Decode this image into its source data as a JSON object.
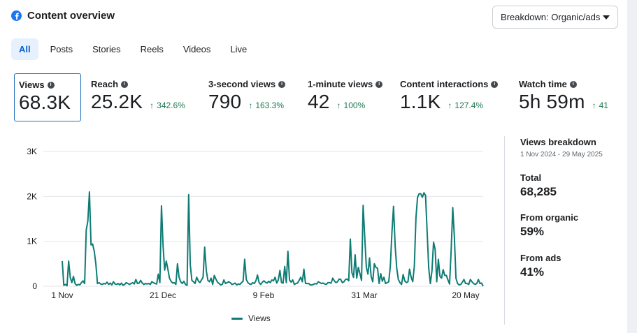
{
  "header": {
    "title": "Content overview",
    "icon": "facebook-icon"
  },
  "breakdown": {
    "label": "Breakdown: Organic/ads"
  },
  "tabs": [
    {
      "label": "All",
      "active": true
    },
    {
      "label": "Posts"
    },
    {
      "label": "Stories"
    },
    {
      "label": "Reels"
    },
    {
      "label": "Videos"
    },
    {
      "label": "Live"
    }
  ],
  "metrics": [
    {
      "label": "Views",
      "value": "68.3K",
      "change": "",
      "selected": true
    },
    {
      "label": "Reach",
      "value": "25.2K",
      "change": "342.6%"
    },
    {
      "label": "3-second views",
      "value": "790",
      "change": "163.3%"
    },
    {
      "label": "1-minute views",
      "value": "42",
      "change": "100%"
    },
    {
      "label": "Content interactions",
      "value": "1.1K",
      "change": "127.4%"
    },
    {
      "label": "Watch time",
      "value": "5h 59m",
      "change": "41"
    }
  ],
  "side": {
    "title": "Views breakdown",
    "range": "1 Nov 2024 - 29 May 2025",
    "total_label": "Total",
    "total_value": "68,285",
    "organic_label": "From organic",
    "organic_value": "59%",
    "ads_label": "From ads",
    "ads_value": "41%"
  },
  "colors": {
    "line": "#0e7c74",
    "accent": "#0a5fcf",
    "positive": "#1c7a52"
  },
  "chart_data": {
    "type": "line",
    "x_ticks": [
      "1 Nov",
      "21 Dec",
      "9 Feb",
      "31 Mar",
      "20 May"
    ],
    "y_ticks": [
      "3K",
      "2K",
      "1K",
      "0"
    ],
    "ylim": [
      0,
      3000
    ],
    "grid": true,
    "legend": "bottom",
    "series": [
      {
        "name": "Views",
        "values": [
          560,
          20,
          40,
          10,
          560,
          200,
          80,
          220,
          60,
          20,
          40,
          30,
          80,
          120,
          60,
          1250,
          1450,
          2100,
          920,
          940,
          780,
          500,
          60,
          80,
          50,
          40,
          60,
          50,
          90,
          40,
          70,
          30,
          100,
          50,
          40,
          60,
          30,
          70,
          20,
          40,
          80,
          60,
          40,
          60,
          80,
          50,
          150,
          60,
          70,
          130,
          70,
          40,
          60,
          50,
          60,
          40,
          100,
          80,
          60,
          50,
          270,
          80,
          1790,
          900,
          360,
          560,
          380,
          180,
          110,
          70,
          80,
          40,
          500,
          200,
          100,
          60,
          110,
          40,
          20,
          2040,
          480,
          130,
          100,
          60,
          200,
          120,
          80,
          140,
          200,
          870,
          350,
          130,
          100,
          180,
          40,
          240,
          160,
          90,
          60,
          30,
          40,
          140,
          60,
          80,
          100,
          80,
          40,
          50,
          70,
          30,
          50,
          40,
          80,
          110,
          600,
          150,
          80,
          50,
          40,
          80,
          60,
          120,
          250,
          80,
          40,
          90,
          120,
          90,
          70,
          110,
          80,
          140,
          120,
          200,
          70,
          140,
          350,
          80,
          70,
          440,
          80,
          780,
          140,
          90,
          140,
          40,
          60,
          70,
          130,
          200,
          100,
          380,
          60,
          60,
          60,
          30,
          30,
          40,
          60,
          50,
          100,
          80,
          60,
          70,
          50,
          40,
          80,
          80,
          70,
          180,
          120,
          80,
          100,
          160,
          150,
          80,
          100,
          150,
          160,
          120,
          1050,
          300,
          200,
          700,
          180,
          420,
          280,
          130,
          1800,
          1100,
          430,
          270,
          630,
          220,
          100,
          500,
          420,
          400,
          60,
          280,
          110,
          200,
          60,
          80,
          100,
          450,
          1200,
          1780,
          900,
          400,
          150,
          80,
          40,
          260,
          120,
          80,
          100,
          380,
          200,
          100,
          450,
          1520,
          1980,
          2060,
          2060,
          1980,
          2080,
          2020,
          1200,
          400,
          60,
          340,
          980,
          820,
          100,
          600,
          220,
          180,
          370,
          240,
          240,
          140,
          50,
          800,
          1750,
          1100,
          180,
          60,
          30,
          40,
          90,
          150,
          60,
          60,
          40,
          150,
          100,
          60,
          40,
          60,
          150,
          60,
          70,
          0
        ]
      }
    ]
  }
}
